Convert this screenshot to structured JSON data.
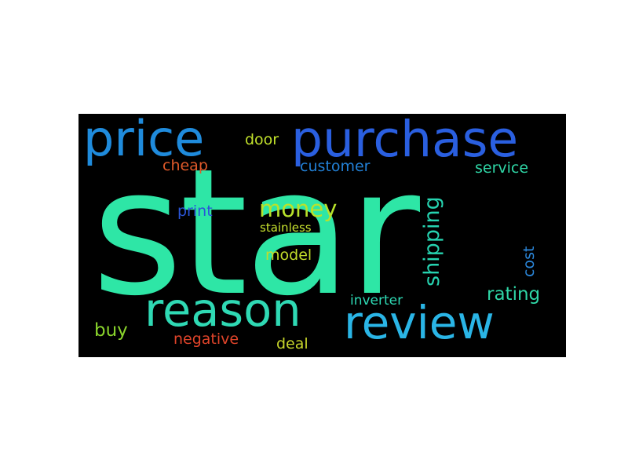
{
  "wordcloud": {
    "background": "#000000",
    "words": [
      {
        "id": "star",
        "text": "star",
        "color": "#2ee6a6"
      },
      {
        "id": "purchase",
        "text": "purchase",
        "color": "#2a5fe0"
      },
      {
        "id": "price",
        "text": "price",
        "color": "#1f8bdc"
      },
      {
        "id": "review",
        "text": "review",
        "color": "#2ab5e6"
      },
      {
        "id": "reason",
        "text": "reason",
        "color": "#2fd9b4"
      },
      {
        "id": "money",
        "text": "money",
        "color": "#b8e22b"
      },
      {
        "id": "shipping",
        "text": "shipping",
        "color": "#26d3b0"
      },
      {
        "id": "customer",
        "text": "customer",
        "color": "#2280d6"
      },
      {
        "id": "service",
        "text": "service",
        "color": "#2fd6a6"
      },
      {
        "id": "door",
        "text": "door",
        "color": "#c0e02b"
      },
      {
        "id": "cheap",
        "text": "cheap",
        "color": "#e05a2a"
      },
      {
        "id": "print",
        "text": "print",
        "color": "#2a55d8"
      },
      {
        "id": "stainless",
        "text": "stainless",
        "color": "#c7e12e"
      },
      {
        "id": "model",
        "text": "model",
        "color": "#c2dc2b"
      },
      {
        "id": "cost",
        "text": "cost",
        "color": "#2b86d9"
      },
      {
        "id": "rating",
        "text": "rating",
        "color": "#2fd6a6"
      },
      {
        "id": "inverter",
        "text": "inverter",
        "color": "#2ed9b4"
      },
      {
        "id": "buy",
        "text": "buy",
        "color": "#8ad42c"
      },
      {
        "id": "negative",
        "text": "negative",
        "color": "#e0442a"
      },
      {
        "id": "deal",
        "text": "deal",
        "color": "#c8d62b"
      }
    ]
  }
}
